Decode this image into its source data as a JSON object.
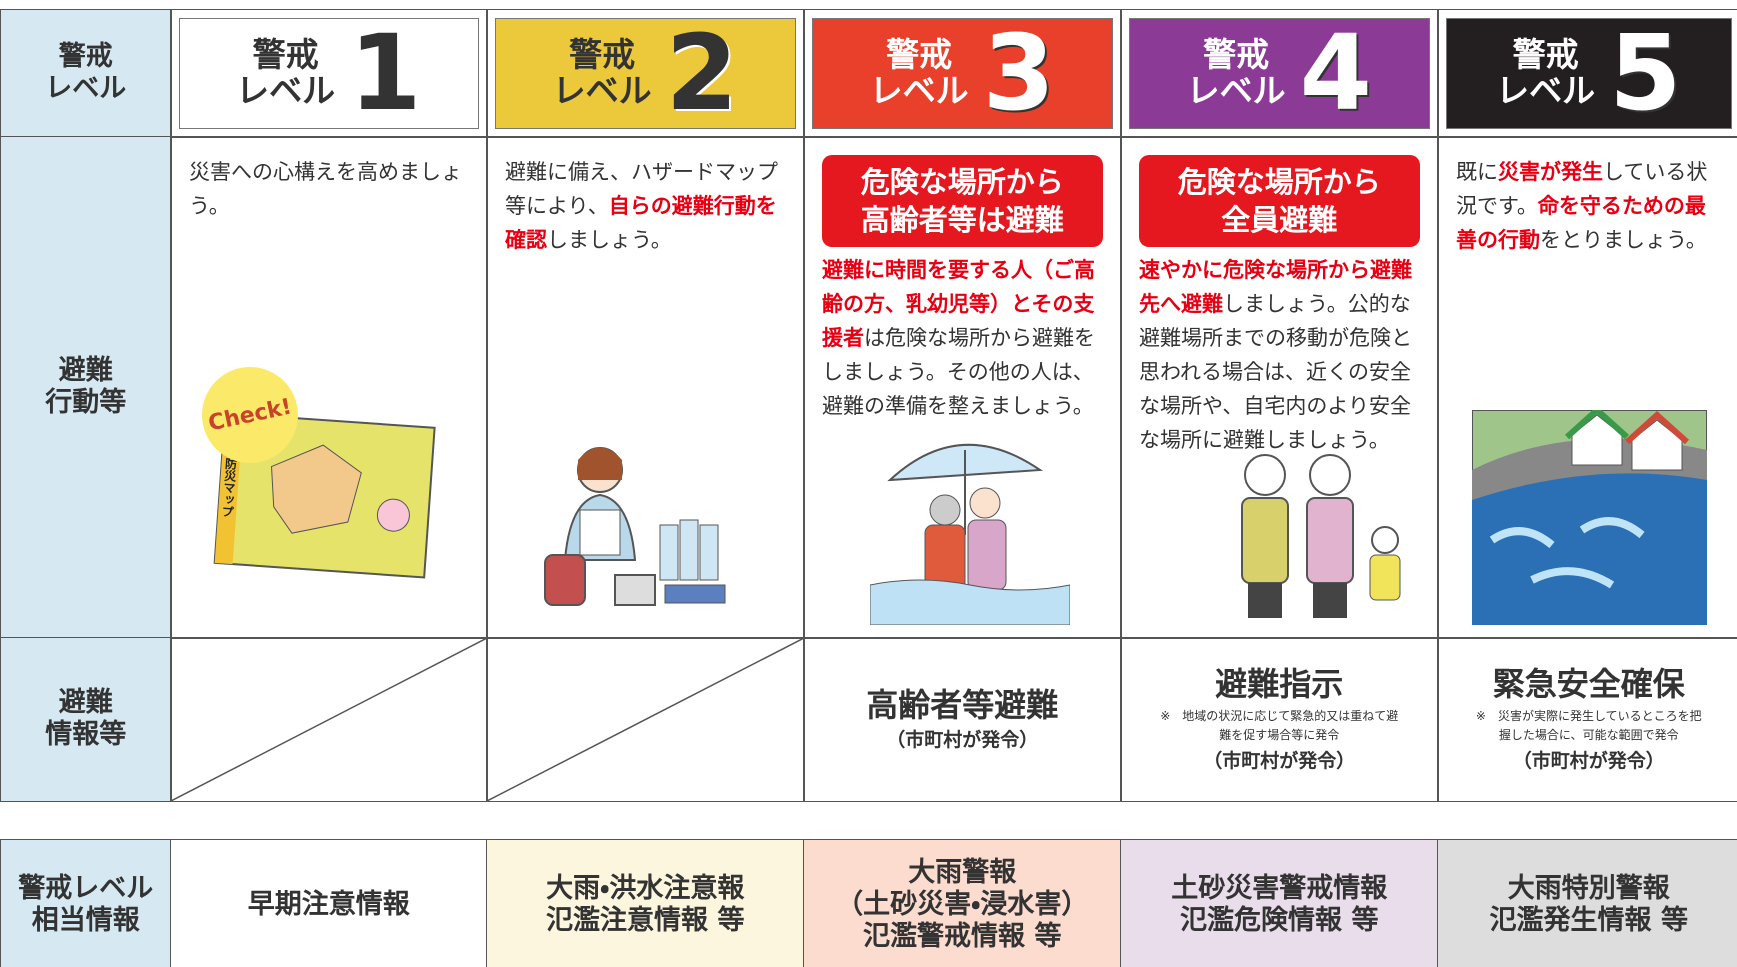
{
  "row_headers": [
    "警戒\nレベル",
    "避難\n行動等",
    "避難\n情報等",
    "警戒レベル\n相当情報"
  ],
  "levels": [
    {
      "label": "警戒\nレベル",
      "number": 1,
      "background": "#ffffff",
      "text_color": "#333333"
    },
    {
      "label": "警戒\nレベル",
      "number": 2,
      "background": "#ecc93a",
      "text_color": "#333333"
    },
    {
      "label": "警戒\nレベル",
      "number": 3,
      "background": "#e8402a",
      "text_color": "#ffffff"
    },
    {
      "label": "警戒\nレベル",
      "number": 4,
      "background": "#8b3a96",
      "text_color": "#ffffff"
    },
    {
      "label": "警戒\nレベル",
      "number": 5,
      "background": "#231f20",
      "text_color": "#ffffff"
    }
  ],
  "actions": [
    {
      "text": [
        {
          "text": "災害への心構えを高めましょう。",
          "em": false
        }
      ]
    },
    {
      "text": [
        {
          "text": "避難に備え、ハザードマップ等により、",
          "em": false
        },
        {
          "text": "自らの避難行動を確認",
          "em": true
        },
        {
          "text": "しましょう。",
          "em": false
        }
      ]
    },
    {
      "banner": "危険な場所から\n高齢者等は避難",
      "text": [
        {
          "text": "避難に時間を要する人（ご高齢の方、乳幼児等）とその支援者",
          "em": true
        },
        {
          "text": "は危険な場所から避難をしましょう。その他の人は、避難の準備を整えましょう。",
          "em": false
        }
      ]
    },
    {
      "banner": "危険な場所から\n全員避難",
      "text": [
        {
          "text": "速やかに危険な場所から避難先へ避難",
          "em": true
        },
        {
          "text": "しましょう。公的な避難場所までの移動が危険と思われる場合は、近くの安全な場所や、自宅内のより安全な場所に避難しましょう。",
          "em": false
        }
      ]
    },
    {
      "text": [
        {
          "text": "既に",
          "em": false
        },
        {
          "text": "災害が発生",
          "em": true
        },
        {
          "text": "している状況です。",
          "em": false
        },
        {
          "text": "命を守るための最善の行動",
          "em": true
        },
        {
          "text": "をとりましょう。",
          "em": false
        }
      ]
    }
  ],
  "info": [
    {
      "diagonal": true
    },
    {
      "diagonal": true
    },
    {
      "title": "高齢者等避難",
      "issuer": "（市町村が発令）"
    },
    {
      "title": "避難指示",
      "note": "※　地域の状況に応じて緊急的又は重ねて避難を促す場合等に発令",
      "issuer": "（市町村が発令）"
    },
    {
      "title": "緊急安全確保",
      "note": "※　災害が実際に発生しているところを把握した場合に、可能な範囲で発令",
      "issuer": "（市町村が発令）"
    }
  ],
  "equivalent": [
    {
      "text": "早期注意情報",
      "background": "#ffffff"
    },
    {
      "text": "大雨・洪水注意報\n氾濫注意情報 等",
      "background": "#fdf6df"
    },
    {
      "text": "大雨警報\n（土砂災害・浸水害）\n氾濫警戒情報 等",
      "background": "#fbdccf"
    },
    {
      "text": "土砂災害警戒情報\n氾濫危険情報 等",
      "background": "#e9ddec"
    },
    {
      "text": "大雨特別警報\n氾濫発生情報 等",
      "background": "#dddddd"
    }
  ],
  "illustration_labels": {
    "check": "Check!",
    "map_title": "南区防災マップ"
  }
}
